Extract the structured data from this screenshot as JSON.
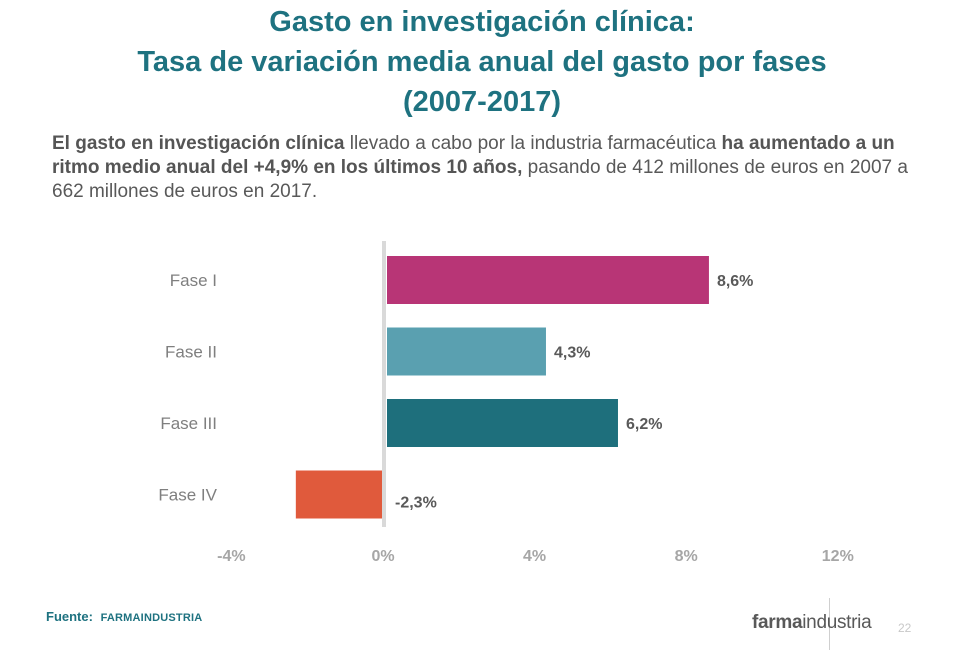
{
  "title": {
    "line1": "Gasto en investigación clínica:",
    "line2": "Tasa de variación media anual del gasto por fases",
    "line3": "(2007-2017)"
  },
  "intro": {
    "bold1": "El gasto en investigación clínica",
    "text1": " llevado a cabo por la industria farmacéutica ",
    "bold2": "ha aumentado a un ritmo medio anual del +4,9% en los últimos 10 años,",
    "text2": " pasando de 412 millones de euros en 2007 a 662 millones de euros en 2017."
  },
  "chart_data": {
    "type": "bar",
    "orientation": "horizontal",
    "categories": [
      "Fase I",
      "Fase II",
      "Fase III",
      "Fase IV"
    ],
    "values": [
      8.6,
      4.3,
      6.2,
      -2.3
    ],
    "value_labels": [
      "8,6%",
      "4,3%",
      "6,2%",
      "-2,3%"
    ],
    "colors": [
      "#b83576",
      "#5aa0b0",
      "#1e6f7c",
      "#e05a3c"
    ],
    "xlim": [
      -4,
      12
    ],
    "xticks": [
      -4,
      0,
      4,
      8,
      12
    ],
    "xtick_labels": [
      "-4%",
      "0%",
      "4%",
      "8%",
      "12%"
    ],
    "grid": false,
    "title": "",
    "xlabel": "",
    "ylabel": ""
  },
  "footer": {
    "source_label": "Fuente:",
    "source_org": "FARMAINDUSTRIA",
    "logo_bold": "farma",
    "logo_regular": "industria",
    "page_number": "22"
  }
}
